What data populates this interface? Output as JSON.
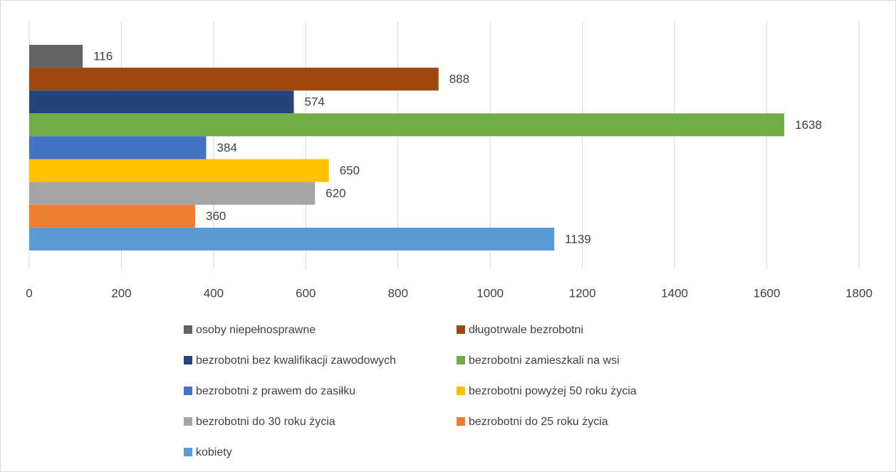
{
  "chart_data": {
    "type": "bar",
    "orientation": "horizontal",
    "categories": [
      null
    ],
    "series": [
      {
        "name": "osoby niepełnosprawne",
        "color": "#636363",
        "values": [
          116
        ]
      },
      {
        "name": "długotrwale bezrobotni",
        "color": "#9e480e",
        "values": [
          888
        ]
      },
      {
        "name": "bezrobotni bez kwalifikacji zawodowych",
        "color": "#264478",
        "values": [
          574
        ]
      },
      {
        "name": "bezrobotni zamieszkali na wsi",
        "color": "#70ad47",
        "values": [
          1638
        ]
      },
      {
        "name": "bezrobotni z prawem do zasiłku",
        "color": "#4472c4",
        "values": [
          384
        ]
      },
      {
        "name": "bezrobotni powyżej 50 roku życia",
        "color": "#ffc000",
        "values": [
          650
        ]
      },
      {
        "name": "bezrobotni do 30 roku życia",
        "color": "#a5a5a5",
        "values": [
          620
        ]
      },
      {
        "name": "bezrobotni do 25 roku życia",
        "color": "#ed7d31",
        "values": [
          360
        ]
      },
      {
        "name": "kobiety",
        "color": "#5b9bd5",
        "values": [
          1139
        ]
      }
    ],
    "xlim": [
      0,
      1800
    ],
    "xticks": [
      0,
      200,
      400,
      600,
      800,
      1000,
      1200,
      1400,
      1600,
      1800
    ],
    "grid": true,
    "legend": "bottom"
  }
}
